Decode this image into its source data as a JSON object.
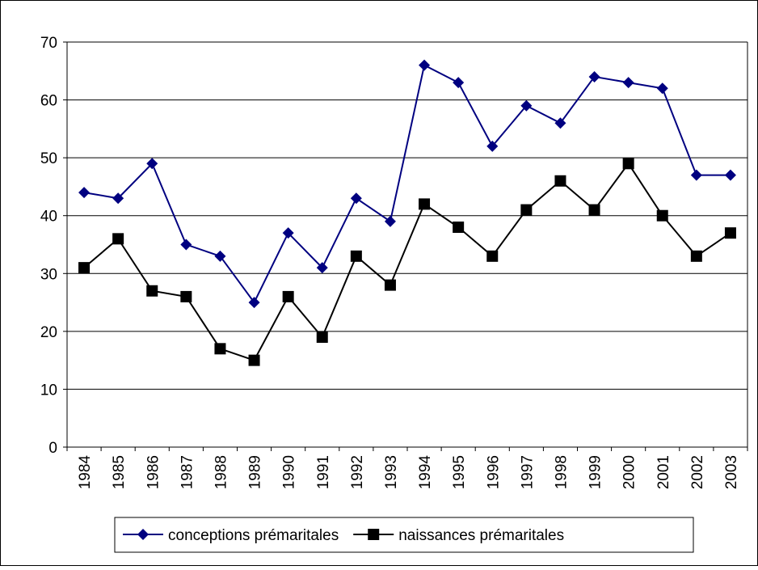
{
  "chart_data": {
    "type": "line",
    "categories": [
      "1984",
      "1985",
      "1986",
      "1987",
      "1988",
      "1989",
      "1990",
      "1991",
      "1992",
      "1993",
      "1994",
      "1995",
      "1996",
      "1997",
      "1998",
      "1999",
      "2000",
      "2001",
      "2002",
      "2003"
    ],
    "series": [
      {
        "name": "conceptions prémaritales",
        "color": "#000080",
        "marker": "diamond",
        "values": [
          44,
          43,
          49,
          35,
          33,
          25,
          37,
          31,
          43,
          39,
          66,
          63,
          52,
          59,
          56,
          64,
          63,
          62,
          47,
          47
        ]
      },
      {
        "name": "naissances prémaritales",
        "color": "#000000",
        "marker": "square",
        "values": [
          31,
          36,
          27,
          26,
          17,
          15,
          26,
          19,
          33,
          28,
          42,
          38,
          33,
          41,
          46,
          41,
          49,
          40,
          33,
          37
        ]
      }
    ],
    "ylim": [
      0,
      70
    ],
    "yticks": [
      0,
      10,
      20,
      30,
      40,
      50,
      60,
      70
    ],
    "grid": true,
    "legend": "bottom"
  }
}
